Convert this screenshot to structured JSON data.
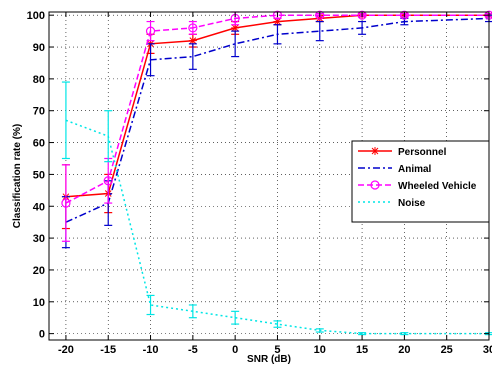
{
  "chart_data": {
    "type": "line",
    "xlabel": "SNR (dB)",
    "ylabel": "Classification rate (%)",
    "xlim": [
      -22,
      30
    ],
    "ylim": [
      -2,
      101
    ],
    "xticks": [
      -20,
      -15,
      -10,
      -5,
      0,
      5,
      10,
      15,
      20,
      25,
      30
    ],
    "yticks": [
      0,
      10,
      20,
      30,
      40,
      50,
      60,
      70,
      80,
      90,
      100
    ],
    "grid": true,
    "grid_style": "dotted",
    "legend_position": "right",
    "x": [
      -20,
      -15,
      -10,
      -5,
      0,
      5,
      10,
      15,
      20,
      30
    ],
    "series": [
      {
        "name": "Personnel",
        "color": "#ff0000",
        "line_style": "solid",
        "marker": "star",
        "values": [
          43,
          44,
          91,
          92,
          96,
          98,
          99,
          100,
          100,
          100
        ],
        "error": [
          10,
          6,
          3,
          2,
          2,
          1,
          1,
          0.5,
          0.5,
          0.5
        ]
      },
      {
        "name": "Animal",
        "color": "#0000cc",
        "line_style": "dashdot",
        "marker": "none",
        "values": [
          35,
          41,
          86,
          87,
          91,
          94,
          95,
          96,
          98,
          99
        ],
        "error": [
          8,
          7,
          5,
          4,
          4,
          3,
          3,
          2,
          1,
          1
        ]
      },
      {
        "name": "Wheeled Vehicle",
        "color": "#ff00ff",
        "line_style": "dashed",
        "marker": "circle",
        "values": [
          41,
          48,
          95,
          96,
          99,
          100,
          100,
          100,
          100,
          100
        ],
        "error": [
          12,
          7,
          3,
          2,
          2,
          1,
          0.5,
          0.5,
          0.5,
          0.5
        ]
      },
      {
        "name": "Noise",
        "color": "#00e5e5",
        "line_style": "dotted",
        "marker": "none",
        "values": [
          67,
          62,
          9,
          7,
          5,
          3,
          1,
          0,
          0,
          0
        ],
        "error": [
          12,
          8,
          3,
          2,
          2,
          1,
          0.5,
          0.3,
          0.3,
          0.3
        ]
      }
    ]
  }
}
